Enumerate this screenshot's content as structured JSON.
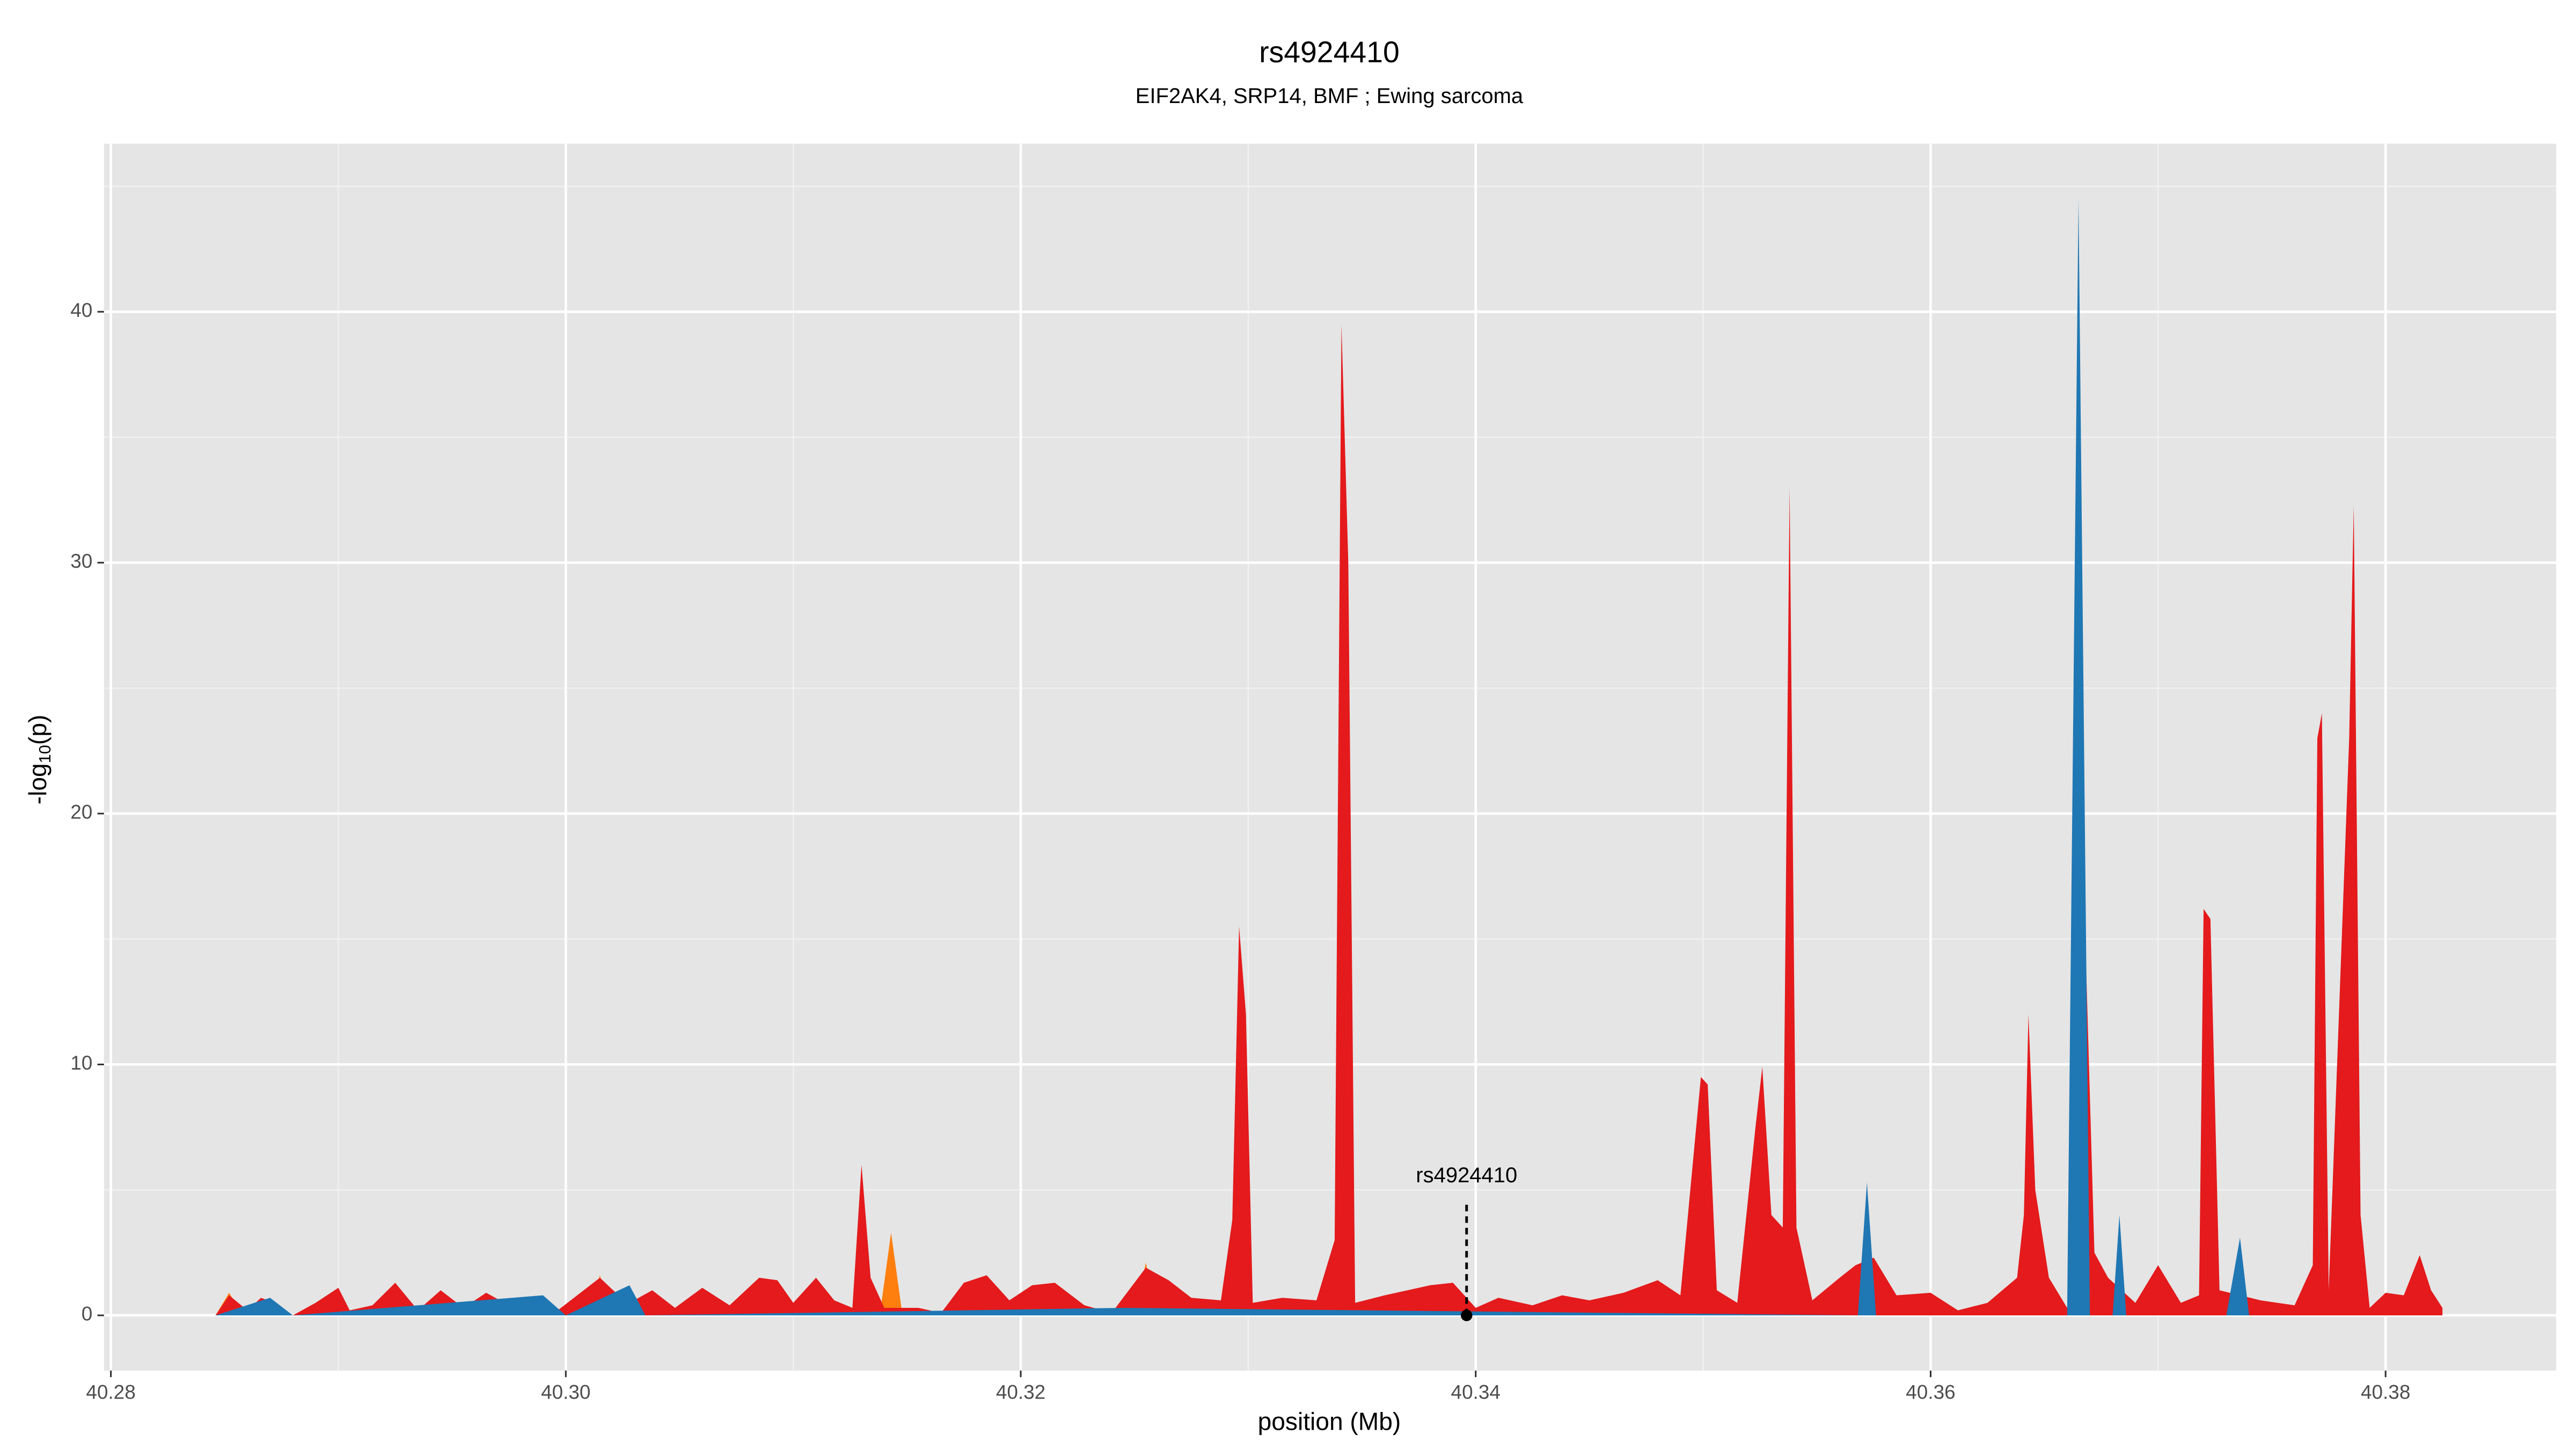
{
  "chart_data": {
    "type": "area",
    "title": "rs4924410",
    "subtitle": "EIF2AK4, SRP14, BMF ; Ewing sarcoma",
    "xlabel": "position (Mb)",
    "ylabel": {
      "prefix": "-log",
      "subscript": "10",
      "suffix": "(p)"
    },
    "xlim": [
      40.2797,
      40.3875
    ],
    "ylim": [
      -2.2,
      46.7
    ],
    "xticks": [
      40.28,
      {
        "value": 40.3,
        "label": "40.30"
      },
      40.32,
      40.34,
      40.36,
      40.38
    ],
    "yticks": [
      0,
      10,
      20,
      30,
      40
    ],
    "x_minor_grid": [
      40.29,
      40.31,
      40.33,
      40.35,
      40.37
    ],
    "y_minor_grid": [
      5,
      15,
      25,
      35,
      45
    ],
    "grid": true,
    "annotation": {
      "label": "rs4924410",
      "x": 40.3396,
      "y": 0
    },
    "series": [
      {
        "color": "#ff7f0e",
        "x": [
          40.2846,
          40.2852,
          40.2858,
          40.301,
          40.3015,
          40.302,
          40.3138,
          40.3143,
          40.3148,
          40.325,
          40.3255,
          40.326,
          40.3493,
          40.3497,
          40.35,
          40.3825
        ],
        "values": [
          0,
          0.9,
          0,
          0,
          1.6,
          0,
          0,
          3.3,
          0,
          0,
          2.1,
          0,
          0,
          2.2,
          0,
          0
        ]
      },
      {
        "color": "#e41a1c",
        "x": [
          40.2846,
          40.2852,
          40.286,
          40.2866,
          40.2872,
          40.288,
          40.289,
          40.29,
          40.2905,
          40.2915,
          40.2925,
          40.2935,
          40.2945,
          40.2955,
          40.2965,
          40.2975,
          40.2985,
          40.2995,
          40.3005,
          40.3015,
          40.3022,
          40.303,
          40.3038,
          40.3048,
          40.306,
          40.3072,
          40.3085,
          40.3093,
          40.31,
          40.311,
          40.3118,
          40.3126,
          40.313,
          40.3134,
          40.314,
          40.3155,
          40.3165,
          40.3175,
          40.3185,
          40.3195,
          40.3205,
          40.3215,
          40.3228,
          40.324,
          40.3255,
          40.3265,
          40.3275,
          40.3288,
          40.3293,
          40.3296,
          40.3299,
          40.3302,
          40.3315,
          40.333,
          40.3338,
          40.3341,
          40.3344,
          40.3347,
          40.336,
          40.338,
          40.339,
          40.34,
          40.341,
          40.3425,
          40.3438,
          40.345,
          40.3465,
          40.348,
          40.349,
          40.3499,
          40.3502,
          40.3506,
          40.3515,
          40.3523,
          40.3526,
          40.353,
          40.3535,
          40.3538,
          40.3541,
          40.3548,
          40.356,
          40.3567,
          40.3575,
          40.3585,
          40.36,
          40.3612,
          40.3625,
          40.3638,
          40.3641,
          40.3643,
          40.3646,
          40.3652,
          40.366,
          40.3668,
          40.3672,
          40.3678,
          40.369,
          40.37,
          40.371,
          40.3718,
          40.372,
          40.3723,
          40.3727,
          40.3745,
          40.376,
          40.3768,
          40.377,
          40.3772,
          40.3775,
          40.3784,
          40.3786,
          40.3789,
          40.3793,
          40.38,
          40.3808,
          40.3815,
          40.382,
          40.3825
        ],
        "values": [
          0,
          0.8,
          0.2,
          0.7,
          0.5,
          0,
          0.5,
          1.1,
          0.2,
          0.4,
          1.3,
          0.2,
          1.0,
          0.3,
          0.9,
          0.4,
          0.7,
          0.1,
          0.8,
          1.5,
          0.9,
          0.6,
          1.0,
          0.3,
          1.1,
          0.4,
          1.5,
          1.4,
          0.5,
          1.5,
          0.6,
          0.3,
          6.0,
          1.5,
          0.3,
          0.3,
          0.1,
          1.3,
          1.6,
          0.6,
          1.2,
          1.3,
          0.4,
          0.1,
          1.9,
          1.4,
          0.7,
          0.6,
          3.8,
          15.5,
          12.0,
          0.5,
          0.7,
          0.6,
          3.0,
          39.5,
          30.0,
          0.5,
          0.8,
          1.2,
          1.3,
          0.3,
          0.7,
          0.4,
          0.8,
          0.6,
          0.9,
          1.4,
          0.8,
          9.5,
          9.2,
          1.0,
          0.5,
          7.5,
          9.9,
          4.0,
          3.5,
          33.0,
          3.5,
          0.6,
          1.5,
          2.0,
          2.3,
          0.8,
          0.9,
          0.2,
          0.5,
          1.5,
          4.0,
          12.0,
          5.0,
          1.5,
          0.3,
          15.0,
          2.5,
          1.5,
          0.5,
          2.0,
          0.5,
          0.8,
          16.2,
          15.8,
          1.0,
          0.6,
          0.4,
          2.0,
          23.0,
          24.0,
          1.0,
          23.0,
          32.3,
          4.0,
          0.3,
          0.9,
          0.8,
          2.4,
          1.0,
          0.3
        ]
      },
      {
        "color": "#1f77b4",
        "x": [
          40.2846,
          40.287,
          40.288,
          40.299,
          40.3,
          40.3028,
          40.3035,
          40.3245,
          40.3568,
          40.3572,
          40.3576,
          40.366,
          40.3665,
          40.367,
          40.368,
          40.3683,
          40.3686,
          40.373,
          40.3736,
          40.374,
          40.3825
        ],
        "values": [
          0,
          0.7,
          0,
          0.8,
          0,
          1.2,
          0,
          0.3,
          0,
          5.3,
          0,
          0,
          44.5,
          0,
          0,
          4.0,
          0,
          0,
          3.1,
          0,
          0
        ]
      }
    ]
  }
}
